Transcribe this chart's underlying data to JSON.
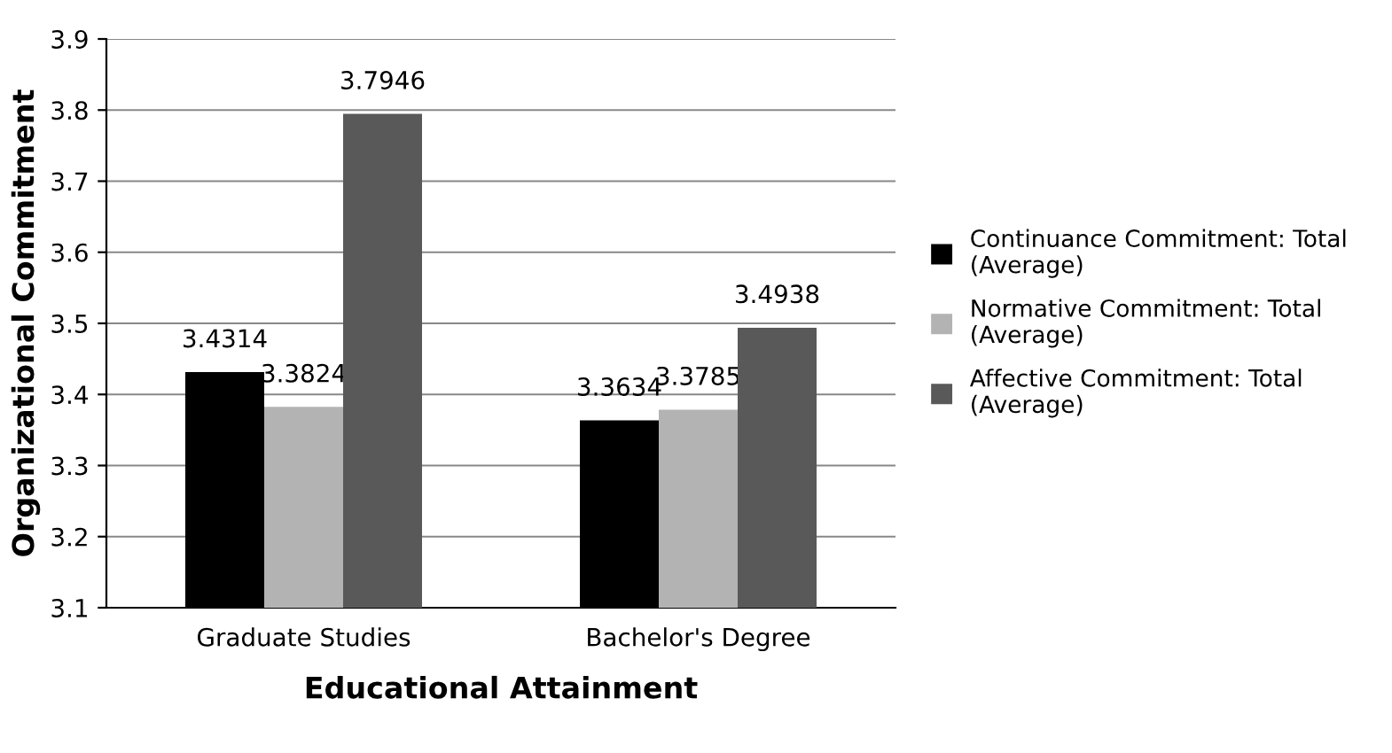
{
  "chart_data": {
    "type": "bar",
    "xlabel": "Educational Attainment",
    "ylabel": "Organizational Commitment",
    "categories": [
      "Graduate Studies",
      "Bachelor's Degree"
    ],
    "series": [
      {
        "name": "Continuance Commitment: Total\n(Average)",
        "color": "#000000",
        "values": [
          3.4314,
          3.3634
        ]
      },
      {
        "name": "Normative Commitment: Total\n(Average)",
        "color": "#b3b3b3",
        "values": [
          3.3824,
          3.3785
        ]
      },
      {
        "name": "Affective Commitment: Total\n(Average)",
        "color": "#595959",
        "values": [
          3.7946,
          3.4938
        ]
      }
    ],
    "ylim": [
      3.1,
      3.9
    ],
    "yticks": [
      3.1,
      3.2,
      3.3,
      3.4,
      3.5,
      3.6,
      3.7,
      3.8,
      3.9
    ],
    "grid": "y",
    "legend": "right",
    "data_labels": true
  }
}
